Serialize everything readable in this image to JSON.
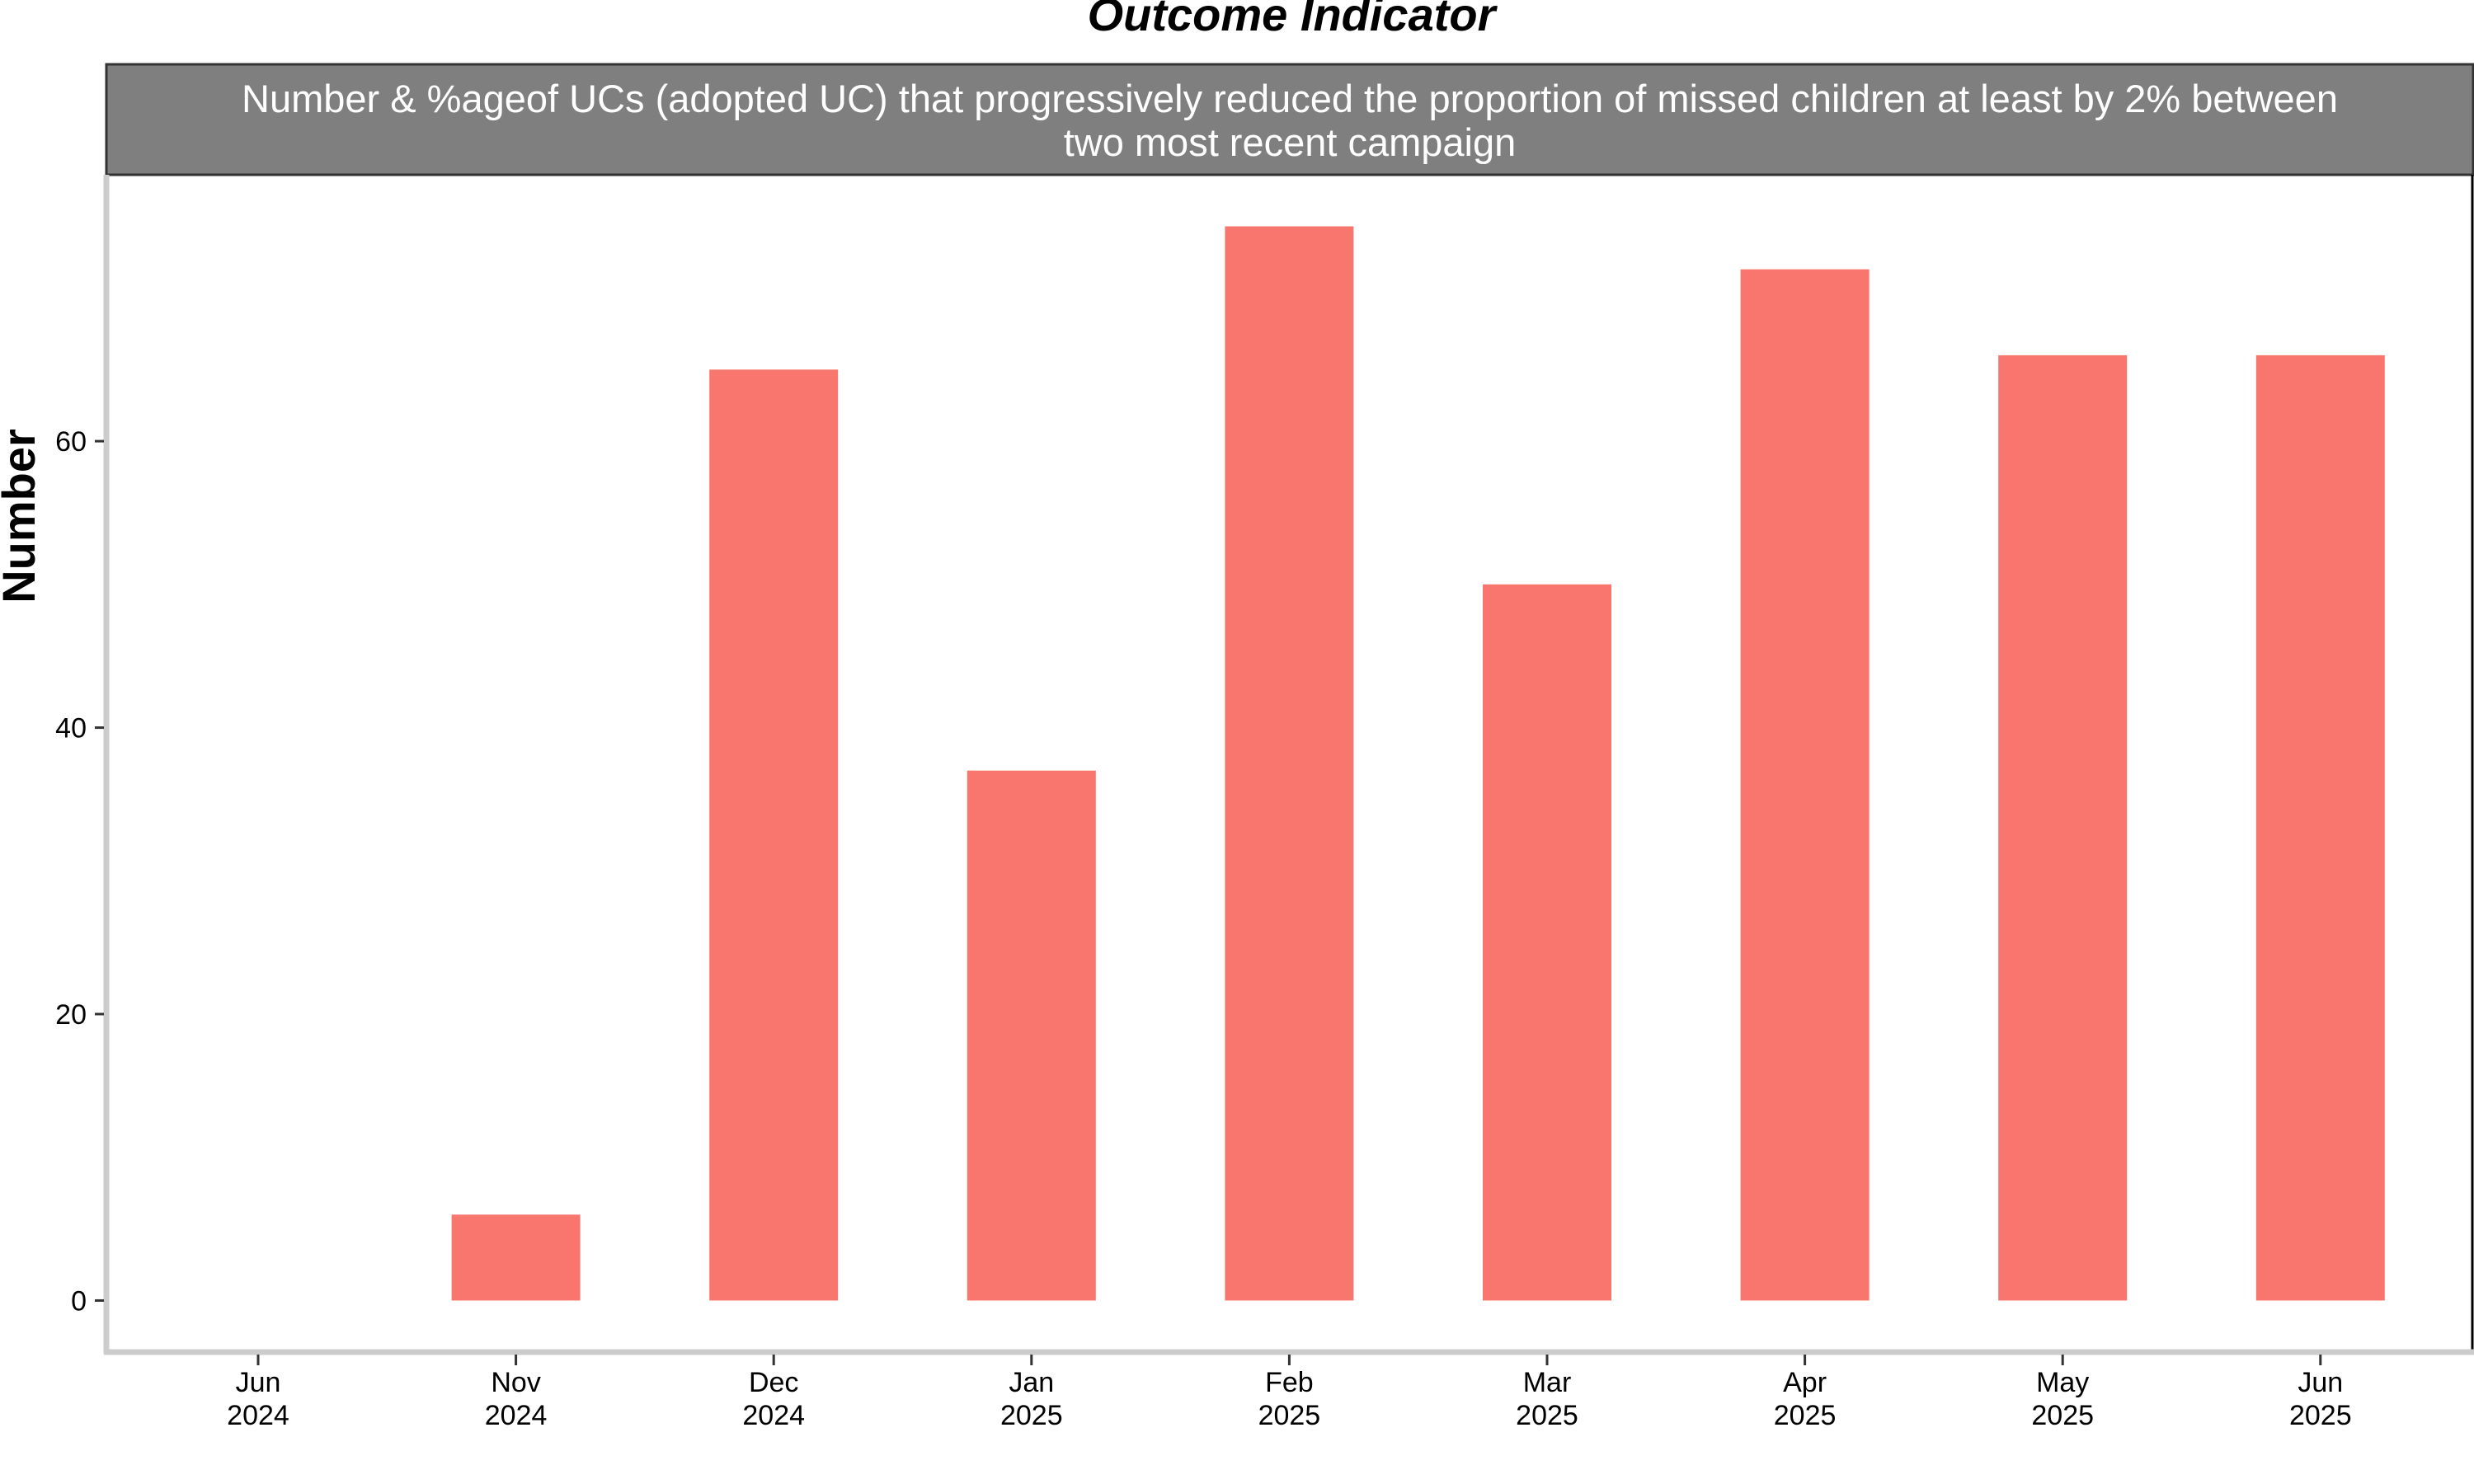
{
  "chart_data": {
    "type": "bar",
    "title": "Outcome Indicator",
    "subtitle": "Number & %ageof UCs (adopted UC) that progressively reduced the proportion of missed children at least by 2% between two most recent campaign",
    "subtitle_lines": [
      "Number & %ageof UCs (adopted UC) that progressively reduced the proportion of missed children at least by 2% between",
      "two most recent campaign"
    ],
    "xlabel": "",
    "ylabel": "Number",
    "categories": [
      [
        "Jun",
        "2024"
      ],
      [
        "Nov",
        "2024"
      ],
      [
        "Dec",
        "2024"
      ],
      [
        "Jan",
        "2025"
      ],
      [
        "Feb",
        "2025"
      ],
      [
        "Mar",
        "2025"
      ],
      [
        "Apr",
        "2025"
      ],
      [
        "May",
        "2025"
      ],
      [
        "Jun",
        "2025"
      ]
    ],
    "values": [
      0,
      6,
      65,
      37,
      75,
      50,
      72,
      66,
      66
    ],
    "ylim": [
      -3.6,
      78.6
    ],
    "yticks": [
      0,
      20,
      40,
      60
    ],
    "grid": false,
    "legend": "none",
    "colors": {
      "bar": "#F8766D",
      "strip_fill": "#7F7F7F",
      "axis_line": "#CCCCCC",
      "panel_border": "#000000",
      "tick": "#333333"
    }
  }
}
